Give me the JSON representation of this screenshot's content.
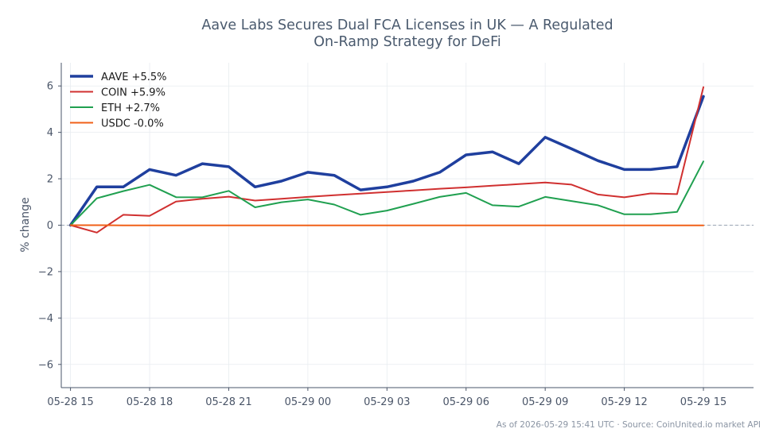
{
  "chart_data": {
    "type": "line",
    "title_lines": [
      "Aave Labs Secures Dual FCA Licenses in UK — A Regulated",
      "On-Ramp Strategy for DeFi"
    ],
    "xlabel": "",
    "ylabel": "% change",
    "ylim": [
      -7,
      7
    ],
    "yticks": [
      -6,
      -4,
      -2,
      0,
      2,
      4,
      6
    ],
    "ytick_labels": [
      "−6",
      "−4",
      "−2",
      "0",
      "2",
      "4",
      "6"
    ],
    "xlim": [
      -0.35,
      25.9
    ],
    "xtick_positions": [
      0,
      3,
      6,
      9,
      12,
      15,
      18,
      21,
      24
    ],
    "xtick_labels": [
      "05-28 15",
      "05-28 18",
      "05-28 21",
      "05-29 00",
      "05-29 03",
      "05-29 06",
      "05-29 09",
      "05-29 12",
      "05-29 15"
    ],
    "x": [
      "05-28 15",
      "05-28 16",
      "05-28 17",
      "05-28 18",
      "05-28 19",
      "05-28 20",
      "05-28 21",
      "05-28 22",
      "05-28 23",
      "05-29 00",
      "05-29 01",
      "05-29 02",
      "05-29 03",
      "05-29 04",
      "05-29 05",
      "05-29 06",
      "05-29 07",
      "05-29 08",
      "05-29 09",
      "05-29 10",
      "05-29 11",
      "05-29 12",
      "05-29 13",
      "05-29 14",
      "05-29 15"
    ],
    "grid": true,
    "baseline": 0,
    "legend_position": "top-left",
    "series": [
      {
        "name": "AAVE +5.5%",
        "color": "#1f3f9e",
        "width": 3.5,
        "values": [
          0,
          1.65,
          1.65,
          2.4,
          2.15,
          2.65,
          2.52,
          1.65,
          1.9,
          2.28,
          2.15,
          1.52,
          1.65,
          1.9,
          2.28,
          3.03,
          3.16,
          2.65,
          3.79,
          3.29,
          2.78,
          2.4,
          2.4,
          2.52,
          5.55
        ]
      },
      {
        "name": "COIN +5.9%",
        "color": "#d03030",
        "width": 2,
        "values": [
          0,
          -0.32,
          0.45,
          0.4,
          1.02,
          1.14,
          1.23,
          1.06,
          1.14,
          1.22,
          1.29,
          1.36,
          1.43,
          1.5,
          1.57,
          1.63,
          1.7,
          1.77,
          1.84,
          1.75,
          1.32,
          1.2,
          1.37,
          1.34,
          5.95
        ]
      },
      {
        "name": "ETH +2.7%",
        "color": "#20a050",
        "width": 2,
        "values": [
          0,
          1.16,
          1.47,
          1.74,
          1.21,
          1.2,
          1.48,
          0.77,
          0.99,
          1.11,
          0.89,
          0.45,
          0.63,
          0.92,
          1.22,
          1.39,
          0.86,
          0.8,
          1.22,
          1.04,
          0.86,
          0.47,
          0.47,
          0.57,
          2.75
        ]
      },
      {
        "name": "USDC -0.0%",
        "color": "#f06018",
        "width": 2,
        "values": [
          0,
          0.0,
          -0.01,
          -0.01,
          -0.01,
          -0.01,
          -0.01,
          -0.01,
          -0.01,
          -0.01,
          -0.01,
          -0.01,
          -0.01,
          -0.01,
          -0.01,
          -0.01,
          -0.01,
          -0.01,
          -0.01,
          -0.01,
          -0.01,
          -0.01,
          -0.01,
          -0.01,
          -0.01
        ]
      }
    ]
  },
  "footer": "As of 2026-05-29 15:41 UTC · Source: CoinUnited.io market API"
}
